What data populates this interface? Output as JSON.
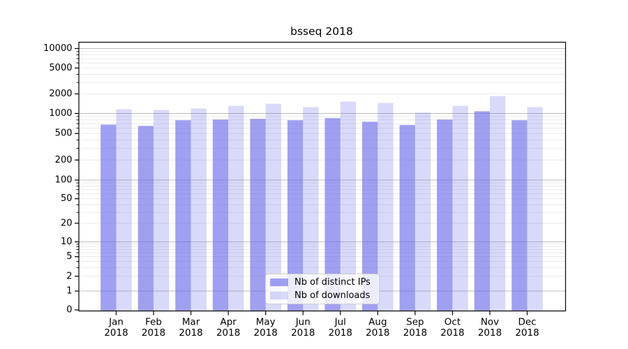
{
  "title": "bsseq 2018",
  "chart_data": {
    "type": "bar",
    "title": "bsseq 2018",
    "categories": [
      "Jan",
      "Feb",
      "Mar",
      "Apr",
      "May",
      "Jun",
      "Jul",
      "Aug",
      "Sep",
      "Oct",
      "Nov",
      "Dec"
    ],
    "category_year": "2018",
    "series": [
      {
        "name": "Nb of distinct IPs",
        "values": [
          680,
          650,
          790,
          810,
          830,
          790,
          850,
          750,
          670,
          810,
          1080,
          790
        ]
      },
      {
        "name": "Nb of downloads",
        "values": [
          1160,
          1130,
          1190,
          1310,
          1410,
          1250,
          1520,
          1450,
          1030,
          1310,
          1850,
          1250
        ]
      }
    ],
    "yscale": "symlog",
    "y_ticks": [
      0,
      1,
      2,
      5,
      10,
      20,
      50,
      100,
      200,
      500,
      1000,
      2000,
      5000,
      10000
    ],
    "y_major_gridlines": [
      1,
      10,
      100,
      1000,
      10000
    ],
    "ylim": [
      0,
      12500
    ],
    "xlabel": "",
    "ylabel": "",
    "grid": true,
    "legend_position": "lower center"
  },
  "legend": {
    "items": [
      {
        "label": "Nb of distinct IPs",
        "swatch": "dark"
      },
      {
        "label": "Nb of downloads",
        "swatch": "light"
      }
    ]
  },
  "colors": {
    "bar_base": "#6666e6",
    "bar_dark_fill": "rgba(102,102,230,0.62)",
    "bar_light_fill": "rgba(102,102,230,0.25)",
    "major_grid": "#bcbcbc",
    "minor_grid": "#e9e9e9",
    "axis": "#000000",
    "legend_border": "#cccccc"
  }
}
